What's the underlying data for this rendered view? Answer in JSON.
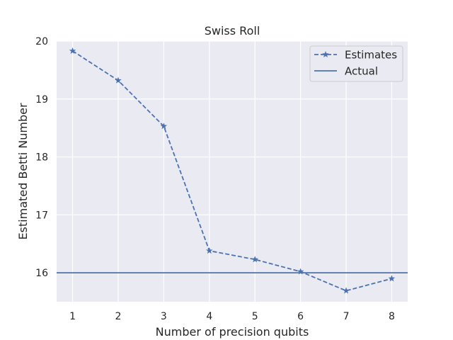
{
  "chart_data": {
    "type": "line",
    "title": "Swiss Roll",
    "xlabel": "Number of precision qubits",
    "ylabel": "Estimated Betti Number",
    "x": [
      1,
      2,
      3,
      4,
      5,
      6,
      7,
      8
    ],
    "xlim": [
      0.65,
      8.35
    ],
    "ylim": [
      15.5,
      20.0
    ],
    "xticks": [
      1,
      2,
      3,
      4,
      5,
      6,
      7,
      8
    ],
    "yticks": [
      16,
      17,
      18,
      19,
      20
    ],
    "grid": true,
    "legend_position": "top-right",
    "series": [
      {
        "name": "Estimates",
        "values": [
          19.83,
          19.32,
          18.53,
          16.38,
          16.23,
          16.02,
          15.69,
          15.9
        ],
        "style": "dashed",
        "marker": "star",
        "color": "#4c72b0"
      },
      {
        "name": "Actual",
        "type": "hline",
        "value": 16,
        "style": "solid",
        "color": "#4c72b0"
      }
    ],
    "colors": {
      "background": "#eaeaf2",
      "grid": "#ffffff",
      "line": "#4c72b0",
      "text": "#262626"
    }
  }
}
